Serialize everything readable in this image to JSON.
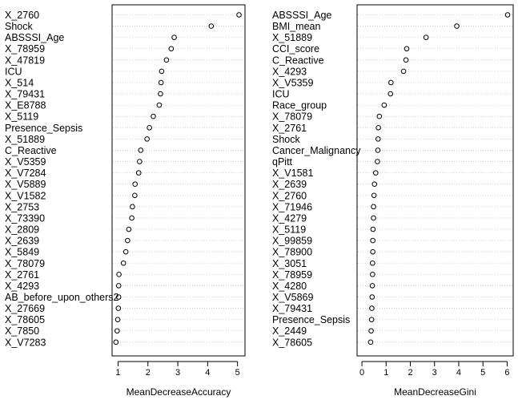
{
  "chart_data": [
    {
      "type": "scatter",
      "xlabel": "MeanDecreaseAccuracy",
      "xlim": [
        0.8,
        5.25
      ],
      "xticks": [
        1,
        2,
        3,
        4,
        5
      ],
      "grid": "dotted horizontal row guides",
      "categories": [
        "X_2760",
        "Shock",
        "ABSSSI_Age",
        "X_78959",
        "X_47819",
        "ICU",
        "X_514",
        "X_79431",
        "X_E8788",
        "X_5119",
        "Presence_Sepsis",
        "X_51889",
        "C_Reactive",
        "X_V5359",
        "X_V7284",
        "X_V5889",
        "X_V1582",
        "X_2753",
        "X_73390",
        "X_2809",
        "X_2639",
        "X_5849",
        "X_78079",
        "X_2761",
        "X_4293",
        "AB_before_upon_others2",
        "X_27669",
        "X_78605",
        "X_7850",
        "X_V7283"
      ],
      "values": [
        5.05,
        4.12,
        2.88,
        2.78,
        2.62,
        2.46,
        2.44,
        2.42,
        2.38,
        2.18,
        2.05,
        1.97,
        1.76,
        1.72,
        1.69,
        1.57,
        1.56,
        1.48,
        1.46,
        1.36,
        1.32,
        1.26,
        1.18,
        1.03,
        1.02,
        1.02,
        1.01,
        0.99,
        0.97,
        0.93
      ]
    },
    {
      "type": "scatter",
      "xlabel": "MeanDecreaseGini",
      "xlim": [
        -0.2,
        6.25
      ],
      "xticks": [
        0,
        1,
        2,
        3,
        4,
        5,
        6
      ],
      "grid": "dotted horizontal row guides",
      "categories": [
        "ABSSSI_Age",
        "BMI_mean",
        "X_51889",
        "CCI_score",
        "C_Reactive",
        "X_4293",
        "X_V5359",
        "ICU",
        "Race_group",
        "X_78079",
        "X_2761",
        "Shock",
        "Cancer_Malignancy",
        "qPitt",
        "X_V1581",
        "X_2639",
        "X_2760",
        "X_71946",
        "X_4279",
        "X_5119",
        "X_99859",
        "X_78900",
        "X_3051",
        "X_78959",
        "X_4280",
        "X_V5869",
        "X_79431",
        "Presence_Sepsis",
        "X_2449",
        "X_78605"
      ],
      "values": [
        6.02,
        3.92,
        2.65,
        1.85,
        1.82,
        1.72,
        1.2,
        1.18,
        0.92,
        0.72,
        0.68,
        0.67,
        0.66,
        0.64,
        0.57,
        0.52,
        0.5,
        0.48,
        0.48,
        0.46,
        0.45,
        0.45,
        0.44,
        0.44,
        0.43,
        0.42,
        0.41,
        0.4,
        0.38,
        0.36
      ]
    }
  ]
}
